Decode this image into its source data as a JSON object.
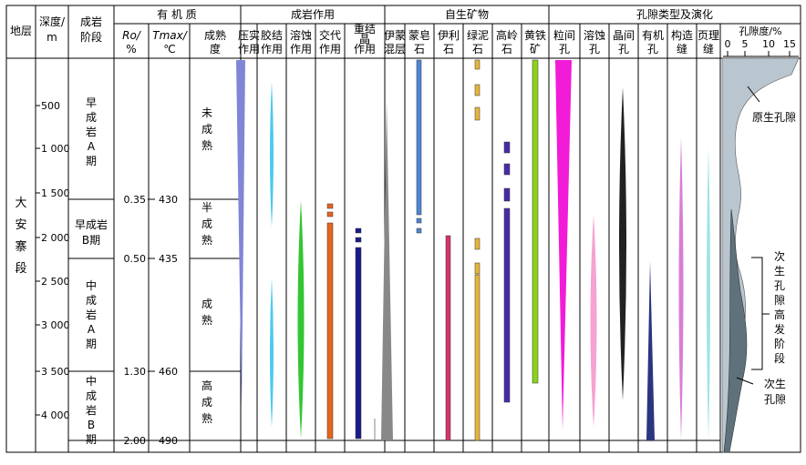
{
  "header": {
    "stratum": "地层",
    "depth": [
      "深度/",
      "m"
    ],
    "diag_stage": [
      "成岩",
      "阶段"
    ],
    "organic": "有 机 质",
    "ro": [
      "Ro/",
      "%"
    ],
    "tmax": [
      "Tmax/",
      "℃"
    ],
    "maturity": [
      "成熟",
      "度"
    ],
    "diagenesis": "成岩作用",
    "authigenic": "自生矿物",
    "pore_group": "孔隙类型及演化",
    "porosity": "孔隙度/%"
  },
  "diagenesis_cols": [
    [
      "压实",
      "作用"
    ],
    [
      "胶结",
      "作用"
    ],
    [
      "溶蚀",
      "作用"
    ],
    [
      "交代",
      "作用"
    ],
    [
      "重结",
      "晶",
      "作用"
    ]
  ],
  "mineral_cols": [
    [
      "伊蒙",
      "混层"
    ],
    [
      "蒙皂",
      "石"
    ],
    [
      "伊利",
      "石"
    ],
    [
      "绿泥",
      "石"
    ],
    [
      "高岭",
      "石"
    ],
    [
      "黄铁",
      "矿"
    ]
  ],
  "pore_cols": [
    [
      "粒间",
      "孔"
    ],
    [
      "溶蚀",
      "孔"
    ],
    [
      "晶间",
      "孔"
    ],
    [
      "有机",
      "孔"
    ],
    [
      "构造",
      "缝"
    ],
    [
      "页理",
      "缝"
    ]
  ],
  "porosity_ticks": [
    "0",
    "5",
    "10",
    "15"
  ],
  "stratum_name": [
    "大",
    "安",
    "寨",
    "段"
  ],
  "depth_ticks": [
    "500",
    "1 000",
    "1 500",
    "2 000",
    "2 500",
    "3 000",
    "3 500",
    "4 000"
  ],
  "stages": [
    [
      "早",
      "成",
      "岩",
      "A",
      "期"
    ],
    [
      "早成岩",
      "B期"
    ],
    [
      "中",
      "成",
      "岩",
      "A",
      "期"
    ],
    [
      "中",
      "成",
      "岩",
      "B",
      "期"
    ]
  ],
  "ro_ticks": [
    "0.35",
    "0.50",
    "1.30",
    "2.00"
  ],
  "tmax_ticks": [
    "430",
    "435",
    "460",
    "490"
  ],
  "maturity_labels": [
    [
      "未",
      "成",
      "熟"
    ],
    [
      "半",
      "成",
      "熟"
    ],
    [
      "成",
      "熟"
    ],
    [
      "高",
      "成",
      "熟"
    ]
  ],
  "porosity_labels": {
    "primary": "原生孔隙",
    "secondary_peak": [
      "次",
      "生",
      "孔",
      "隙",
      "高",
      "发",
      "阶",
      "段"
    ],
    "secondary": [
      "次生",
      "孔隙"
    ]
  },
  "colors": {
    "compaction": "#7f86d6",
    "cementation": "#4cc9ef",
    "dissolution": "#33c633",
    "replacement": "#e8641c",
    "recrystallization": "#1a1a8a",
    "illite_smectite": "#888888",
    "smectite": "#4f86d6",
    "illite": "#d6336e",
    "chlorite": "#e8b43a",
    "kaolinite": "#4b2aa8",
    "pyrite": "#8ad31c",
    "intergranular": "#f21bd8",
    "dissolution_pore": "#f5a3d2",
    "intercrystal": "#222222",
    "organic_pore": "#2b3580",
    "structural": "#d77ed8",
    "lamination": "#9fe3e6",
    "porosity_fill": "#b9c6cf",
    "secondary_fill": "#5f727c"
  }
}
